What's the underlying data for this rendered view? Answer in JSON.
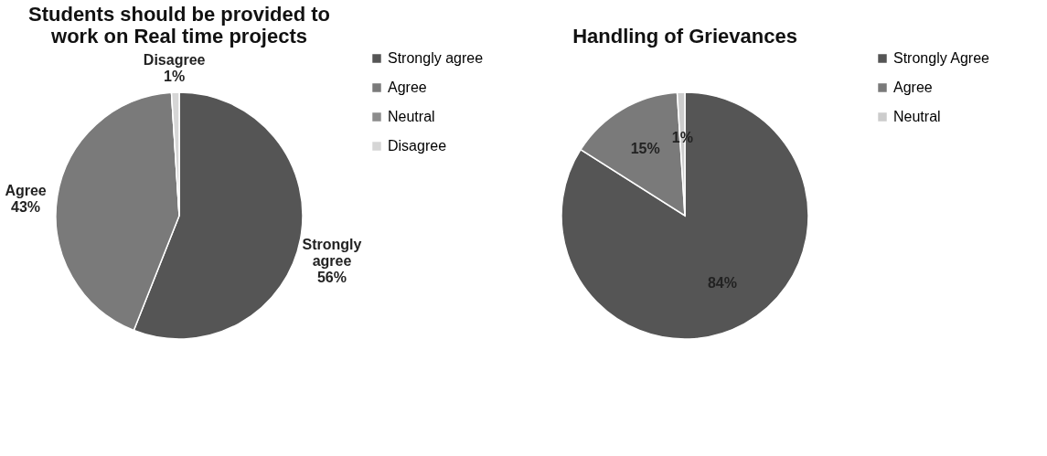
{
  "chart_data": [
    {
      "type": "pie",
      "title": "Students should be provided to work on Real time projects",
      "categories": [
        "Strongly agree",
        "Agree",
        "Neutral",
        "Disagree"
      ],
      "values": [
        56,
        43,
        0,
        1
      ],
      "colors": [
        "#555555",
        "#7a7a7a",
        "#8c8c8c",
        "#d6d6d6"
      ],
      "value_labels": [
        "56%",
        "43%",
        null,
        "1%"
      ],
      "legend": "right"
    },
    {
      "type": "pie",
      "title": "Handling of Grievances",
      "categories": [
        "Strongly Agree",
        "Agree",
        "Neutral"
      ],
      "values": [
        84,
        15,
        1
      ],
      "colors": [
        "#555555",
        "#7a7a7a",
        "#cccccc"
      ],
      "value_labels": [
        "84%",
        "15%",
        "1%"
      ],
      "legend": "right"
    }
  ]
}
